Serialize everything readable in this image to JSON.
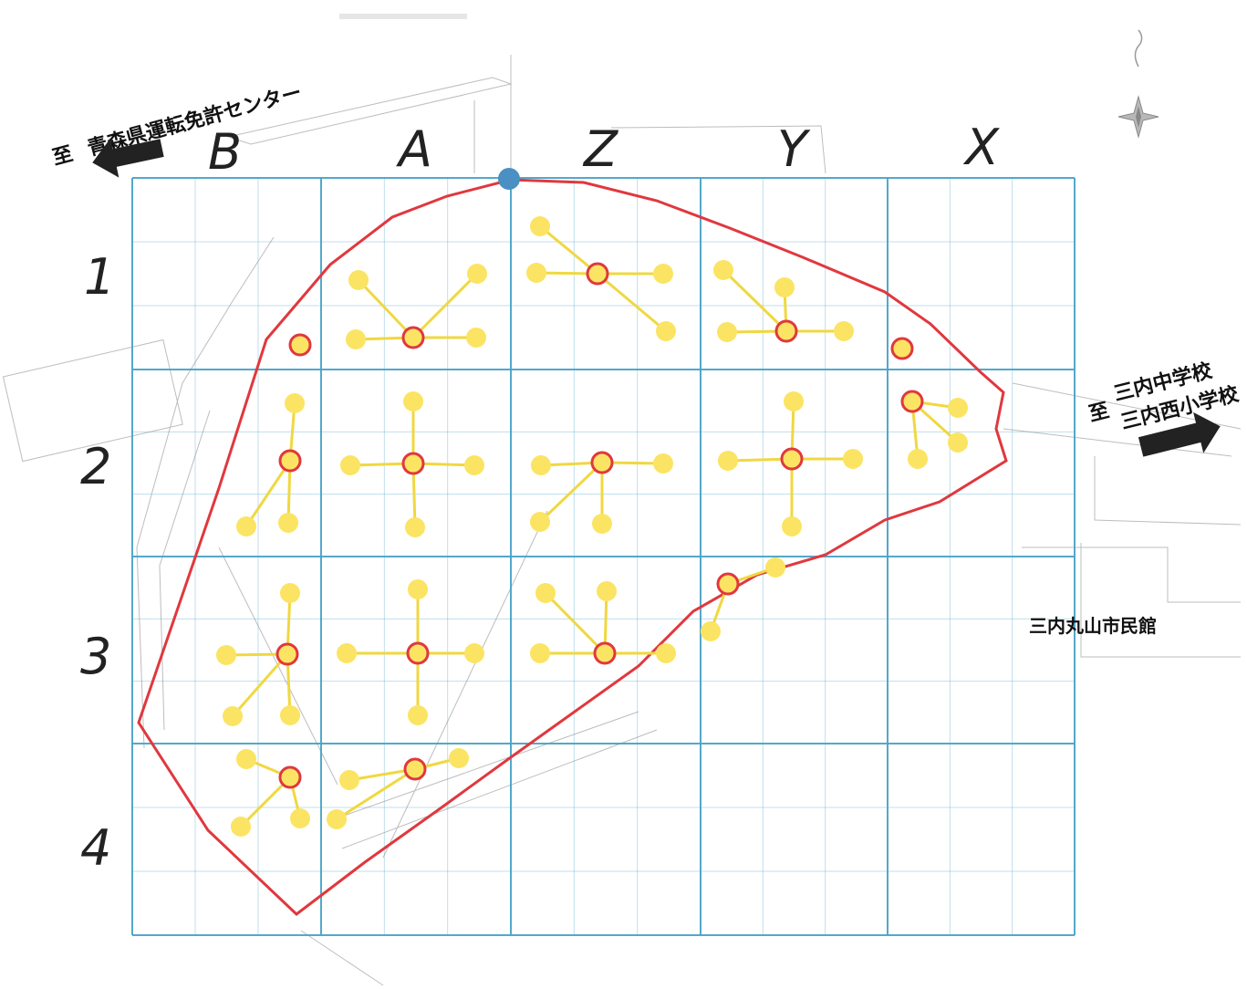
{
  "columns": [
    "B",
    "A",
    "Z",
    "Y",
    "X"
  ],
  "rows": [
    "1",
    "2",
    "3",
    "4"
  ],
  "directions": {
    "left_prefix": "至",
    "left": "青森県運転免許センター",
    "right_prefix": "至",
    "right_line1": "三内中学校",
    "right_line2": "三内西小学校"
  },
  "landmark": "三内丸山市民館",
  "colors": {
    "grid": "#4aa3c8",
    "boundary": "#e0383e",
    "node_fill": "#fbe463",
    "hub_stroke": "#e0383e",
    "connector": "#f0d840",
    "reference_point": "#4a90c2"
  },
  "icons": [
    "arrow-left-icon",
    "arrow-right-icon",
    "compass-rose-icon"
  ]
}
